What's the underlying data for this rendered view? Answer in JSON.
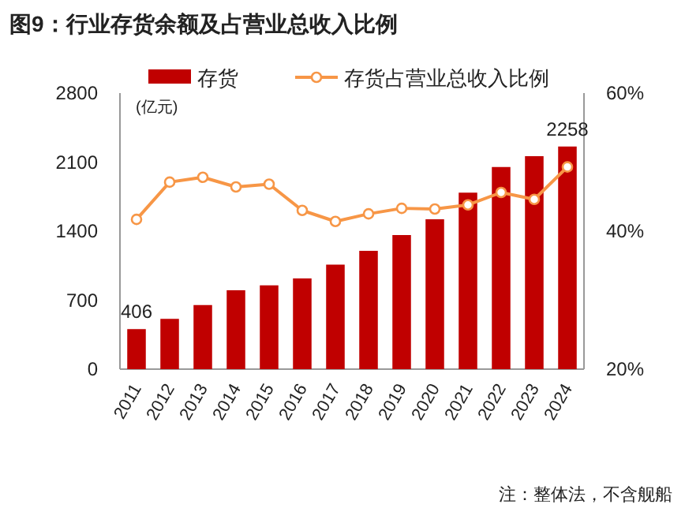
{
  "chart_data": {
    "type": "bar",
    "title": "图9：行业存货余额及占营业总收入比例",
    "ylabel": "(亿元)",
    "categories": [
      "2011",
      "2012",
      "2013",
      "2014",
      "2015",
      "2016",
      "2017",
      "2018",
      "2019",
      "2020",
      "2021",
      "2022",
      "2023",
      "2024"
    ],
    "series": [
      {
        "name": "存货",
        "color": "#c00000",
        "values": [
          406,
          510,
          650,
          800,
          850,
          920,
          1060,
          1200,
          1360,
          1520,
          1790,
          2050,
          2160,
          2258
        ],
        "value_labels": [
          "406",
          null,
          null,
          null,
          null,
          null,
          null,
          null,
          null,
          null,
          null,
          null,
          null,
          "2258"
        ]
      },
      {
        "name": "存货占营业总收入比例",
        "type": "line",
        "axis": "y2",
        "color": "#f79646",
        "marker": "circle",
        "values": [
          41.7,
          47.1,
          47.8,
          46.4,
          46.8,
          43.0,
          41.4,
          42.5,
          43.3,
          43.2,
          43.8,
          45.6,
          44.6,
          49.3
        ]
      }
    ],
    "ylim": [
      0,
      2800
    ],
    "yticks": [
      0,
      700,
      1400,
      2100,
      2800
    ],
    "y2lim": [
      20,
      60
    ],
    "y2ticks": [
      {
        "value": 20,
        "label": "20%"
      },
      {
        "value": 40,
        "label": "40%"
      },
      {
        "value": 60,
        "label": "60%"
      }
    ],
    "legend": "top",
    "grid": false,
    "annotations": [
      "注：整体法，不含舰船"
    ]
  }
}
